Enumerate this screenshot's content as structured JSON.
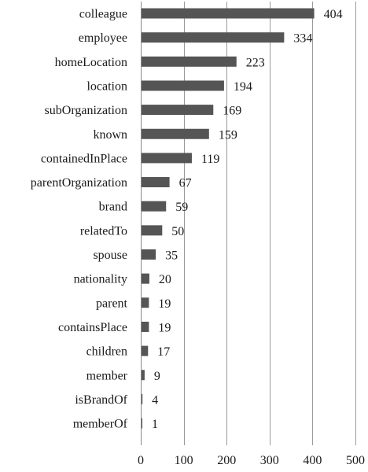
{
  "chart_data": {
    "type": "bar",
    "orientation": "horizontal",
    "categories": [
      "colleague",
      "employee",
      "homeLocation",
      "location",
      "subOrganization",
      "known",
      "containedInPlace",
      "parentOrganization",
      "brand",
      "relatedTo",
      "spouse",
      "nationality",
      "parent",
      "containsPlace",
      "children",
      "member",
      "isBrandOf",
      "memberOf"
    ],
    "values": [
      404,
      334,
      223,
      194,
      169,
      159,
      119,
      67,
      59,
      50,
      35,
      20,
      19,
      19,
      17,
      9,
      4,
      1
    ],
    "xlim": [
      0,
      500
    ],
    "xticks": [
      0,
      100,
      200,
      300,
      400,
      500
    ],
    "grid": "vertical",
    "bar_color": "#555555",
    "data_labels": true
  }
}
